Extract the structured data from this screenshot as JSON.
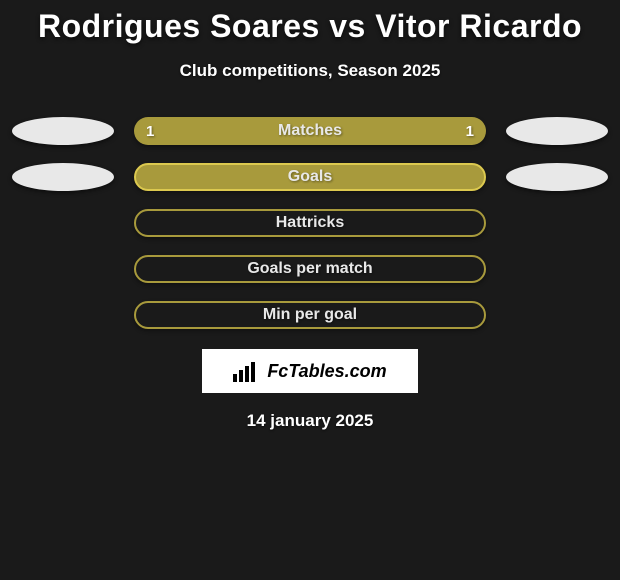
{
  "title": "Rodrigues Soares vs Vitor Ricardo",
  "subtitle": "Club competitions, Season 2025",
  "logo_text": "FcTables.com",
  "date": "14 january 2025",
  "colors": {
    "background": "#1a1a1a",
    "bar_fill": "#a89a3c",
    "bar_border": "#dcc94f",
    "oval_fill": "#e8e8e8",
    "text": "#ffffff"
  },
  "rows": [
    {
      "label": "Matches",
      "left_value": "1",
      "right_value": "1",
      "style": "matches",
      "show_ovals": true,
      "show_values": true
    },
    {
      "label": "Goals",
      "left_value": "",
      "right_value": "",
      "style": "goals",
      "show_ovals": true,
      "show_values": false
    },
    {
      "label": "Hattricks",
      "left_value": "",
      "right_value": "",
      "style": "outline",
      "show_ovals": false,
      "show_values": false
    },
    {
      "label": "Goals per match",
      "left_value": "",
      "right_value": "",
      "style": "outline",
      "show_ovals": false,
      "show_values": false
    },
    {
      "label": "Min per goal",
      "left_value": "",
      "right_value": "",
      "style": "outline",
      "show_ovals": false,
      "show_values": false
    }
  ]
}
